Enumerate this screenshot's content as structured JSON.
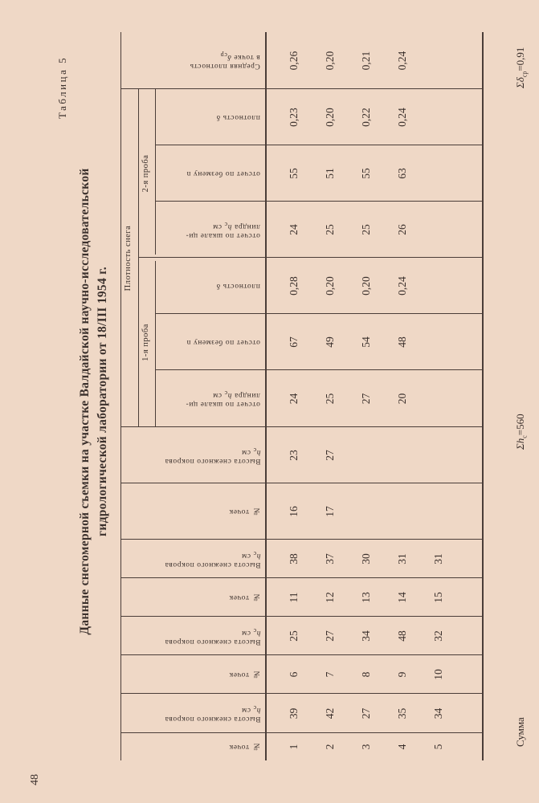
{
  "page_number": "48",
  "table_label": "Таблица 5",
  "title": {
    "line1": "Данные снегомерной съемки на участке Валдайской научно-исследовательской",
    "line2": "гидрологической лаборатории от 18/III 1954 г."
  },
  "group_headers": {
    "density": "Плотность снега",
    "sample1": "1-я проба",
    "sample2": "2-я проба"
  },
  "columns": [
    {
      "lines": [
        "№ точек"
      ]
    },
    {
      "lines": [
        "Высота снежного покрова"
      ],
      "var": "h",
      "sub": "c",
      "unit": " см"
    },
    {
      "lines": [
        "№ точек"
      ]
    },
    {
      "lines": [
        "Высота снежного покрова"
      ],
      "var": "h",
      "sub": "c",
      "unit": " см"
    },
    {
      "lines": [
        "№ точек"
      ]
    },
    {
      "lines": [
        "Высота снежного покрова"
      ],
      "var": "h",
      "sub": "c",
      "unit": " см"
    },
    {
      "lines": [
        "№ точек"
      ]
    },
    {
      "lines": [
        "Высота снежного покрова"
      ],
      "var": "h",
      "sub": "c",
      "unit": " см"
    },
    {
      "lines": [
        "отсчет по шкале ци-",
        "линдра"
      ],
      "var": "h",
      "sub": "c",
      "unit": " см",
      "inline_last": true
    },
    {
      "lines": [
        "отсчет по безмену n"
      ]
    },
    {
      "lines": [
        "плотность δ"
      ]
    },
    {
      "lines": [
        "отсчет по шкале ци-",
        "линдра"
      ],
      "var": "h",
      "sub": "c",
      "unit": " см",
      "inline_last": true
    },
    {
      "lines": [
        "отсчет по безмену n"
      ]
    },
    {
      "lines": [
        "плотность δ"
      ]
    },
    {
      "lines": [
        "Средняя плотность",
        "в точке"
      ],
      "var": "δ",
      "sub": "ср",
      "unit": "",
      "inline_last": true
    }
  ],
  "rows": [
    [
      "1",
      "39",
      "6",
      "25",
      "11",
      "38",
      "16",
      "23",
      "24",
      "67",
      "0,28",
      "24",
      "55",
      "0,23",
      "0,26"
    ],
    [
      "2",
      "42",
      "7",
      "27",
      "12",
      "37",
      "17",
      "27",
      "25",
      "49",
      "0,20",
      "25",
      "51",
      "0,20",
      "0,20"
    ],
    [
      "3",
      "27",
      "8",
      "34",
      "13",
      "30",
      "",
      "",
      "27",
      "54",
      "0,20",
      "25",
      "55",
      "0,22",
      "0,21"
    ],
    [
      "4",
      "35",
      "9",
      "48",
      "14",
      "31",
      "",
      "",
      "20",
      "48",
      "0,24",
      "26",
      "63",
      "0,24",
      "0,24"
    ],
    [
      "5",
      "34",
      "10",
      "32",
      "15",
      "31",
      "",
      "",
      "",
      "",
      "",
      "",
      "",
      "",
      ""
    ]
  ],
  "footer": {
    "label": "Сумма",
    "sum_h": {
      "prefix": "Σh",
      "sub": "c",
      "value": "=560"
    },
    "sum_delta": {
      "prefix": "Σδ",
      "sub": "ср",
      "value": "=0,91"
    }
  },
  "colors": {
    "paper": "#efd8c6",
    "ink": "#3b302c"
  }
}
